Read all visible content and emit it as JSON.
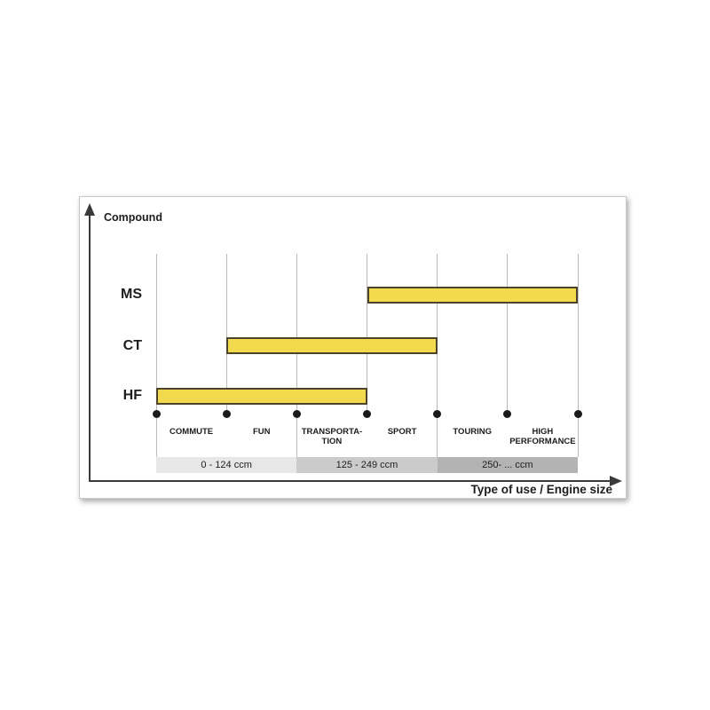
{
  "chart_data": {
    "type": "bar",
    "variant": "horizontal-span",
    "ylabel": "Compound",
    "xlabel": "Type of use / Engine size",
    "categories": [
      "COMMUTE",
      "FUN",
      "TRANSPORTA-\nTION",
      "SPORT",
      "TOURING",
      "HIGH\nPERFORMANCE"
    ],
    "rows": [
      {
        "label": "MS",
        "span": [
          3,
          6
        ]
      },
      {
        "label": "CT",
        "span": [
          1,
          4
        ]
      },
      {
        "label": "HF",
        "span": [
          0,
          3
        ]
      }
    ],
    "engine_bands": [
      {
        "label": "0 - 124 ccm",
        "span": [
          0,
          2
        ],
        "color": "#e7e7e7"
      },
      {
        "label": "125 - 249 ccm",
        "span": [
          2,
          4
        ],
        "color": "#cbcbcb"
      },
      {
        "label": "250- ... ccm",
        "span": [
          4,
          6
        ],
        "color": "#b3b3b3"
      }
    ],
    "grid": "on",
    "legend": "none",
    "colors": {
      "bar_fill": "#f2d94e",
      "bar_border": "#4b432a",
      "axis": "#3a3a3a",
      "gridline": "#bcbcbc",
      "text": "#1d1d1d"
    }
  }
}
